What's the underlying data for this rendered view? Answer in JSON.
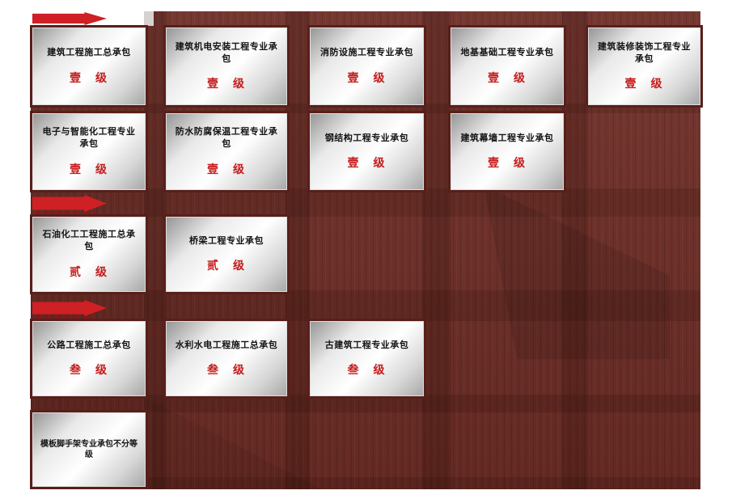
{
  "colors": {
    "canvas_background": "#ffffff",
    "board_background": "#6e2d26",
    "arrow_red": "#cf2025",
    "level_text_red": "#c51d1d",
    "title_text": "#141414",
    "card_frame_dark": "#581f1a",
    "card_surface": "silver-gradient"
  },
  "icons": {
    "section_marker": "right-arrow-icon"
  },
  "arrows": [
    {
      "name": "level-1-group-arrow"
    },
    {
      "name": "level-2-group-arrow"
    },
    {
      "name": "level-3-group-arrow"
    }
  ],
  "cards": [
    {
      "title": "建筑工程施工总承包",
      "level": "壹　级"
    },
    {
      "title": "建筑机电安装工程专业承包",
      "level": "壹　级"
    },
    {
      "title": "消防设施工程专业承包",
      "level": "壹　级"
    },
    {
      "title": "地基基础工程专业承包",
      "level": "壹　级"
    },
    {
      "title": "建筑装修装饰工程专业承包",
      "level": "壹　级"
    },
    {
      "title": "电子与智能化工程专业承包",
      "level": "壹　级"
    },
    {
      "title": "防水防腐保温工程专业承包",
      "level": "壹　级"
    },
    {
      "title": "钢结构工程专业承包",
      "level": "壹　级"
    },
    {
      "title": "建筑幕墙工程专业承包",
      "level": "壹　级"
    },
    {
      "title": "石油化工工程施工总承包",
      "level": "贰　级"
    },
    {
      "title": "桥梁工程专业承包",
      "level": "贰　级"
    },
    {
      "title": "公路工程施工总承包",
      "level": "叁　级"
    },
    {
      "title": "水利水电工程施工总承包",
      "level": "叁　级"
    },
    {
      "title": "古建筑工程专业承包",
      "level": "叁　级"
    },
    {
      "title": "模板脚手架专业承包不分等级",
      "level": ""
    }
  ]
}
